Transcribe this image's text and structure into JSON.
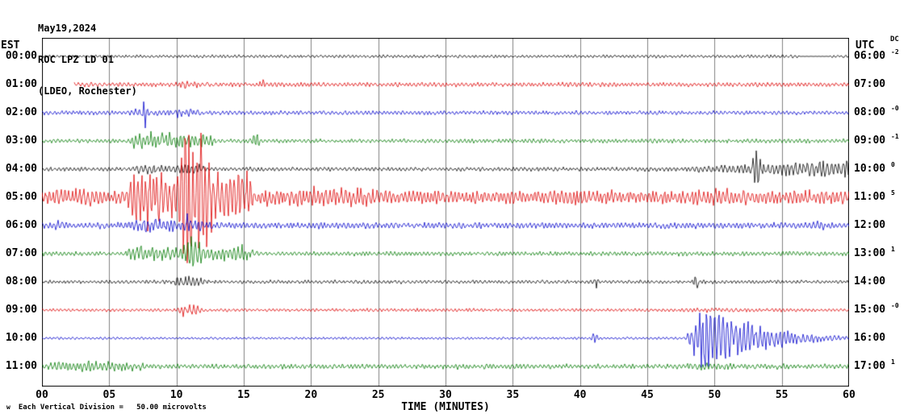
{
  "header": {
    "date": "May19,2024",
    "station": "ROC LPZ LD 01",
    "network": "(LDEO, Rochester)"
  },
  "axes": {
    "left_tz": "EST",
    "right_tz": "UTC",
    "dc_label": "DC",
    "x_title": "TIME (MINUTES)",
    "x_ticks": [
      "00",
      "05",
      "10",
      "15",
      "20",
      "25",
      "30",
      "35",
      "40",
      "45",
      "50",
      "55",
      "60"
    ]
  },
  "footer": {
    "marker": "w",
    "scale_note": "Each Vertical Division =   50.00 microvolts"
  },
  "colors": {
    "black": "#000000",
    "red": "#dd0000",
    "blue": "#0000cc",
    "green": "#007a00",
    "grid": "#808080"
  },
  "chart_data": {
    "type": "line",
    "subtype": "helicorder-seismogram",
    "title": "ROC LPZ LD 01 (LDEO, Rochester) May19,2024",
    "xlabel": "TIME (MINUTES)",
    "x_range_minutes": [
      0,
      60
    ],
    "grid_interval_minutes": 5,
    "vertical_division_microvolts": 50.0,
    "rows": [
      {
        "est": "00:00",
        "utc": "06:00",
        "dc": "-2",
        "color": "black",
        "base_amp": 2.2,
        "start_min": 0,
        "quiet": [
          [
            56.3,
            58.6
          ]
        ],
        "events": [
          {
            "shape": "burst",
            "start": 24.5,
            "end": 26,
            "peak": 4
          },
          {
            "shape": "burst",
            "start": 47,
            "end": 48.5,
            "peak": 4
          }
        ]
      },
      {
        "est": "01:00",
        "utc": "07:00",
        "dc": "",
        "color": "red",
        "base_amp": 3.2,
        "start_min": 2.4,
        "events": [
          {
            "shape": "burst",
            "start": 9.5,
            "end": 13,
            "peak": 6
          },
          {
            "shape": "spike",
            "start": 16.0,
            "end": 16.8,
            "peak": 8
          },
          {
            "shape": "burst",
            "start": 34,
            "end": 36,
            "peak": 5
          }
        ]
      },
      {
        "est": "02:00",
        "utc": "08:00",
        "dc": "-0",
        "color": "blue",
        "base_amp": 3.0,
        "start_min": 0,
        "events": [
          {
            "shape": "spike",
            "start": 7.2,
            "end": 8.0,
            "peak": 30
          },
          {
            "shape": "burst",
            "start": 6,
            "end": 13,
            "peak": 7
          },
          {
            "shape": "burst",
            "start": 56.5,
            "end": 58,
            "peak": 6
          }
        ]
      },
      {
        "est": "03:00",
        "utc": "09:00",
        "dc": "-1",
        "color": "green",
        "base_amp": 3.0,
        "start_min": 0,
        "events": [
          {
            "shape": "burst",
            "start": 6.2,
            "end": 13.5,
            "peak": 15
          },
          {
            "shape": "spike",
            "start": 15.3,
            "end": 16.5,
            "peak": 18
          },
          {
            "shape": "burst",
            "start": 19.5,
            "end": 21,
            "peak": 5
          }
        ]
      },
      {
        "est": "04:00",
        "utc": "10:00",
        "dc": "0",
        "color": "black",
        "base_amp": 3.0,
        "start_min": 0,
        "events": [
          {
            "shape": "burst",
            "start": 6.5,
            "end": 13,
            "peak": 9
          },
          {
            "shape": "grow",
            "start": 43,
            "end": 60,
            "peak": 13
          },
          {
            "shape": "spike",
            "start": 52.6,
            "end": 53.6,
            "peak": 36
          },
          {
            "shape": "burst",
            "start": 55.5,
            "end": 60,
            "peak": 15
          }
        ]
      },
      {
        "est": "05:00",
        "utc": "11:00",
        "dc": "5",
        "color": "red",
        "base_amp": 10,
        "start_min": 0,
        "events": [
          {
            "shape": "burst",
            "start": 0,
            "end": 6.5,
            "peak": 14
          },
          {
            "shape": "burst",
            "start": 6,
            "end": 16.5,
            "peak": 45
          },
          {
            "shape": "burst",
            "start": 9.8,
            "end": 13.4,
            "peak": 140
          },
          {
            "shape": "burst",
            "start": 16,
            "end": 26,
            "peak": 17
          },
          {
            "shape": "burst",
            "start": 38,
            "end": 44,
            "peak": 14
          },
          {
            "shape": "burst",
            "start": 47.5,
            "end": 53,
            "peak": 16
          },
          {
            "shape": "burst",
            "start": 55,
            "end": 60,
            "peak": 13
          }
        ]
      },
      {
        "est": "06:00",
        "utc": "12:00",
        "dc": "",
        "color": "blue",
        "base_amp": 4.5,
        "start_min": 0,
        "events": [
          {
            "shape": "burst",
            "start": 0,
            "end": 3,
            "peak": 9
          },
          {
            "shape": "burst",
            "start": 6,
            "end": 13.5,
            "peak": 12
          },
          {
            "shape": "spike",
            "start": 10.4,
            "end": 11.2,
            "peak": 18
          },
          {
            "shape": "burst",
            "start": 56.5,
            "end": 60,
            "peak": 8
          }
        ]
      },
      {
        "est": "07:00",
        "utc": "13:00",
        "dc": "1",
        "color": "green",
        "base_amp": 3.2,
        "start_min": 0,
        "events": [
          {
            "shape": "burst",
            "start": 6,
            "end": 16.5,
            "peak": 14
          },
          {
            "shape": "spike",
            "start": 10,
            "end": 12.6,
            "peak": 28
          },
          {
            "shape": "burst",
            "start": 28.5,
            "end": 30,
            "peak": 6
          },
          {
            "shape": "burst",
            "start": 47,
            "end": 49,
            "peak": 6
          }
        ]
      },
      {
        "est": "08:00",
        "utc": "14:00",
        "dc": "",
        "color": "black",
        "base_amp": 2.6,
        "start_min": 0,
        "events": [
          {
            "shape": "burst",
            "start": 9.5,
            "end": 13,
            "peak": 11
          },
          {
            "shape": "burst",
            "start": 19.8,
            "end": 21,
            "peak": 4
          },
          {
            "shape": "spike",
            "start": 40.8,
            "end": 41.6,
            "peak": 10
          },
          {
            "shape": "spike",
            "start": 48.2,
            "end": 49,
            "peak": 13
          }
        ]
      },
      {
        "est": "09:00",
        "utc": "15:00",
        "dc": "-0",
        "color": "red",
        "base_amp": 2.4,
        "start_min": 0,
        "events": [
          {
            "shape": "burst",
            "start": 9.8,
            "end": 12.8,
            "peak": 9
          },
          {
            "shape": "burst",
            "start": 47,
            "end": 56,
            "peak": 4
          }
        ]
      },
      {
        "est": "10:00",
        "utc": "16:00",
        "dc": "",
        "color": "blue",
        "base_amp": 1.8,
        "start_min": 0,
        "events": [
          {
            "shape": "spike",
            "start": 40.7,
            "end": 41.5,
            "peak": 11
          },
          {
            "shape": "spindle",
            "start": 47.8,
            "end": 60,
            "peak": 55
          }
        ]
      },
      {
        "est": "11:00",
        "utc": "17:00",
        "dc": "1",
        "color": "green",
        "base_amp": 3.5,
        "start_min": 0,
        "events": [
          {
            "shape": "burst",
            "start": 0,
            "end": 8.5,
            "peak": 9
          },
          {
            "shape": "burst",
            "start": 12,
            "end": 14,
            "peak": 6
          },
          {
            "shape": "burst",
            "start": 20,
            "end": 22,
            "peak": 5
          },
          {
            "shape": "burst",
            "start": 30,
            "end": 32.5,
            "peak": 5
          },
          {
            "shape": "burst",
            "start": 41,
            "end": 43,
            "peak": 5
          },
          {
            "shape": "burst",
            "start": 47.5,
            "end": 53,
            "peak": 7
          },
          {
            "shape": "burst",
            "start": 54,
            "end": 56.5,
            "peak": 5
          }
        ]
      }
    ]
  }
}
